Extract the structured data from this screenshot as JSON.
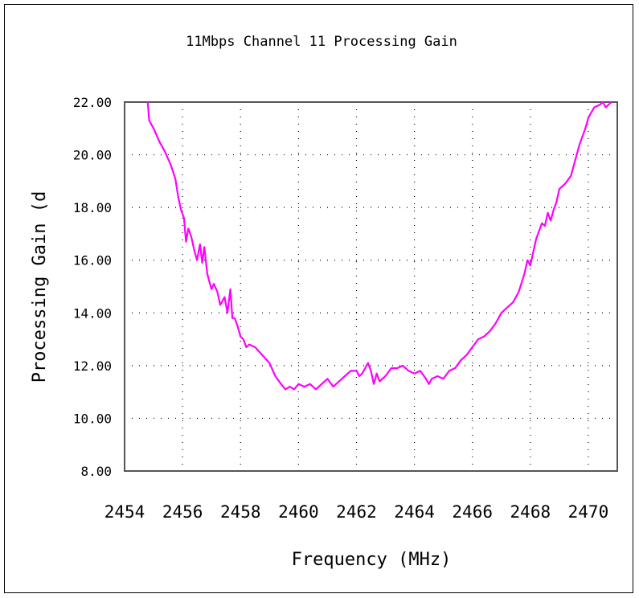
{
  "chart_data": {
    "type": "line",
    "title": "11Mbps Channel 11 Processing Gain",
    "xlabel": "Frequency (MHz)",
    "ylabel": "Processing Gain (d",
    "xlim": [
      2454,
      2471
    ],
    "ylim": [
      8,
      22
    ],
    "x_ticks": [
      "2454",
      "2456",
      "2458",
      "2460",
      "2462",
      "2464",
      "2466",
      "2468",
      "2470"
    ],
    "y_ticks": [
      "22.00",
      "20.00",
      "18.00",
      "16.00",
      "14.00",
      "12.00",
      "10.00",
      "8.00"
    ],
    "grid": true,
    "line_color": "#ff00ff",
    "series": [
      {
        "x": [
          2454.8,
          2454.85,
          2455.0,
          2455.2,
          2455.4,
          2455.6,
          2455.75,
          2455.85,
          2455.95,
          2456.05,
          2456.12,
          2456.2,
          2456.3,
          2456.4,
          2456.5,
          2456.6,
          2456.68,
          2456.75,
          2456.85,
          2456.92,
          2457.0,
          2457.08,
          2457.2,
          2457.3,
          2457.45,
          2457.55,
          2457.65,
          2457.72,
          2457.8,
          2457.9,
          2458.0,
          2458.1,
          2458.2,
          2458.3,
          2458.5,
          2458.75,
          2459.0,
          2459.2,
          2459.4,
          2459.55,
          2459.7,
          2459.85,
          2460.0,
          2460.2,
          2460.4,
          2460.6,
          2460.8,
          2461.0,
          2461.2,
          2461.4,
          2461.6,
          2461.8,
          2462.0,
          2462.1,
          2462.2,
          2462.3,
          2462.4,
          2462.5,
          2462.6,
          2462.7,
          2462.8,
          2463.0,
          2463.2,
          2463.4,
          2463.6,
          2463.8,
          2464.0,
          2464.2,
          2464.4,
          2464.5,
          2464.6,
          2464.8,
          2465.0,
          2465.2,
          2465.4,
          2465.6,
          2465.8,
          2466.0,
          2466.2,
          2466.4,
          2466.6,
          2466.8,
          2467.0,
          2467.2,
          2467.4,
          2467.6,
          2467.8,
          2467.9,
          2468.0,
          2468.1,
          2468.2,
          2468.3,
          2468.4,
          2468.5,
          2468.6,
          2468.7,
          2468.8,
          2468.9,
          2469.0,
          2469.2,
          2469.4,
          2469.5,
          2469.6,
          2469.7,
          2469.8,
          2469.9,
          2470.0,
          2470.2,
          2470.4,
          2470.5,
          2470.6,
          2470.8
        ],
        "y": [
          22.0,
          21.3,
          21.0,
          20.5,
          20.1,
          19.6,
          19.1,
          18.4,
          17.9,
          17.6,
          16.7,
          17.2,
          16.9,
          16.4,
          16.0,
          16.6,
          15.9,
          16.5,
          15.5,
          15.2,
          14.9,
          15.1,
          14.8,
          14.3,
          14.6,
          14.0,
          14.9,
          13.8,
          13.8,
          13.5,
          13.1,
          13.0,
          12.7,
          12.8,
          12.7,
          12.4,
          12.1,
          11.6,
          11.3,
          11.1,
          11.2,
          11.1,
          11.3,
          11.2,
          11.3,
          11.1,
          11.3,
          11.5,
          11.2,
          11.4,
          11.6,
          11.8,
          11.8,
          11.6,
          11.7,
          11.9,
          12.1,
          11.8,
          11.3,
          11.7,
          11.4,
          11.6,
          11.9,
          11.9,
          12.0,
          11.8,
          11.7,
          11.8,
          11.5,
          11.3,
          11.5,
          11.6,
          11.5,
          11.8,
          11.9,
          12.2,
          12.4,
          12.7,
          13.0,
          13.1,
          13.3,
          13.6,
          14.0,
          14.2,
          14.4,
          14.8,
          15.5,
          16.0,
          15.8,
          16.3,
          16.8,
          17.1,
          17.4,
          17.3,
          17.8,
          17.5,
          17.9,
          18.2,
          18.7,
          18.9,
          19.2,
          19.6,
          20.0,
          20.4,
          20.7,
          21.0,
          21.4,
          21.8,
          21.9,
          22.0,
          21.8,
          22.0
        ]
      }
    ]
  }
}
